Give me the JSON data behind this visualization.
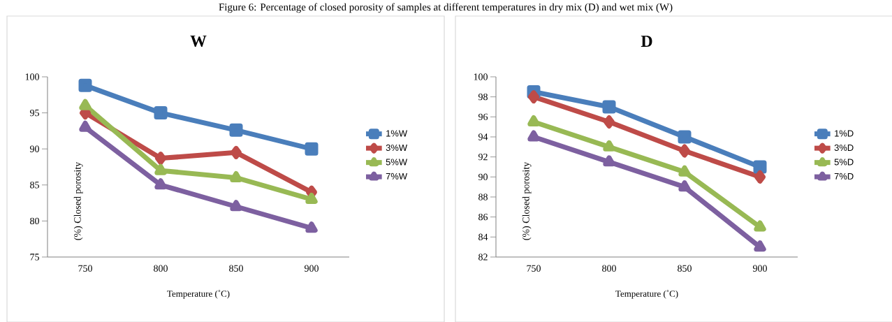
{
  "chart_data": [
    {
      "type": "line",
      "title": "W",
      "xlabel": "Temperature (˚C)",
      "ylabel": "(%) Closed porosity",
      "annotations": [
        "Figure 6: Percentage of closed porosity of samples at different temperatures in dry mix (D) and wet mix (W)"
      ],
      "categories": [
        "750",
        "800",
        "850",
        "900"
      ],
      "ylim": [
        75,
        100
      ],
      "yticks": [
        75,
        80,
        85,
        90,
        95,
        100
      ],
      "grid": false,
      "legend": "right",
      "line_style": "solid",
      "series": [
        {
          "name": "1%W",
          "color": "#4a7ebb",
          "marker": "square",
          "values": [
            98.8,
            95,
            92.6,
            90
          ]
        },
        {
          "name": "3%W",
          "color": "#be4b48",
          "marker": "diamond",
          "values": [
            95,
            88.7,
            89.5,
            84
          ]
        },
        {
          "name": "5%W",
          "color": "#98b954",
          "marker": "triangle",
          "values": [
            96,
            87,
            86,
            83
          ]
        },
        {
          "name": "7%W",
          "color": "#7d60a0",
          "marker": "triangle",
          "values": [
            93,
            85,
            82,
            79
          ]
        }
      ]
    },
    {
      "type": "line",
      "title": "D",
      "xlabel": "Temperature (˚C)",
      "ylabel": "(%) Closed porosity",
      "categories": [
        "750",
        "800",
        "850",
        "900"
      ],
      "ylim": [
        82,
        100
      ],
      "yticks": [
        82,
        84,
        86,
        88,
        90,
        92,
        94,
        96,
        98,
        100
      ],
      "grid": false,
      "legend": "right",
      "line_style": "solid",
      "series": [
        {
          "name": "1%D",
          "color": "#4a7ebb",
          "marker": "square",
          "values": [
            98.5,
            97,
            94,
            91
          ]
        },
        {
          "name": "3%D",
          "color": "#be4b48",
          "marker": "diamond",
          "values": [
            98,
            95.5,
            92.6,
            90
          ]
        },
        {
          "name": "5%D",
          "color": "#98b954",
          "marker": "triangle",
          "values": [
            95.5,
            93,
            90.5,
            85
          ]
        },
        {
          "name": "7%D",
          "color": "#7d60a0",
          "marker": "triangle",
          "values": [
            94,
            91.5,
            89,
            83
          ]
        }
      ]
    }
  ]
}
